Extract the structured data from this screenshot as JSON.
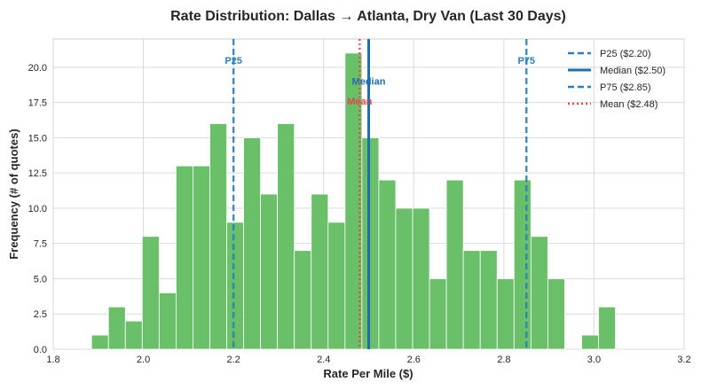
{
  "chart_data": {
    "type": "bar",
    "title": "Rate Distribution: Dallas → Atlanta, Dry Van (Last 30 Days)",
    "xlabel": "Rate Per Mile ($)",
    "ylabel": "Frequency (# of quotes)",
    "xlim": [
      1.8,
      3.2
    ],
    "ylim": [
      0,
      22
    ],
    "xticks": [
      "1.8",
      "2.0",
      "2.2",
      "2.4",
      "2.6",
      "2.8",
      "3.0",
      "3.2"
    ],
    "yticks": [
      "0.0",
      "2.5",
      "5.0",
      "7.5",
      "10.0",
      "12.5",
      "15.0",
      "17.5",
      "20.0"
    ],
    "grid": true,
    "legend_position": "top-right",
    "bin_width": 0.0375,
    "bins": [
      {
        "x0": 1.885,
        "count": 1
      },
      {
        "x0": 1.9225,
        "count": 3
      },
      {
        "x0": 1.96,
        "count": 2
      },
      {
        "x0": 1.9975,
        "count": 8
      },
      {
        "x0": 2.035,
        "count": 4
      },
      {
        "x0": 2.0725,
        "count": 13
      },
      {
        "x0": 2.11,
        "count": 13
      },
      {
        "x0": 2.1475,
        "count": 16
      },
      {
        "x0": 2.185,
        "count": 9
      },
      {
        "x0": 2.2225,
        "count": 15
      },
      {
        "x0": 2.26,
        "count": 11
      },
      {
        "x0": 2.2975,
        "count": 16
      },
      {
        "x0": 2.335,
        "count": 7
      },
      {
        "x0": 2.3725,
        "count": 11
      },
      {
        "x0": 2.41,
        "count": 9
      },
      {
        "x0": 2.4475,
        "count": 21
      },
      {
        "x0": 2.485,
        "count": 15
      },
      {
        "x0": 2.5225,
        "count": 12
      },
      {
        "x0": 2.56,
        "count": 10
      },
      {
        "x0": 2.5975,
        "count": 10
      },
      {
        "x0": 2.635,
        "count": 5
      },
      {
        "x0": 2.6725,
        "count": 12
      },
      {
        "x0": 2.71,
        "count": 7
      },
      {
        "x0": 2.7475,
        "count": 7
      },
      {
        "x0": 2.785,
        "count": 5
      },
      {
        "x0": 2.8225,
        "count": 12
      },
      {
        "x0": 2.86,
        "count": 8
      },
      {
        "x0": 2.8975,
        "count": 5
      },
      {
        "x0": 2.935,
        "count": 0
      },
      {
        "x0": 2.9725,
        "count": 1
      },
      {
        "x0": 3.01,
        "count": 3
      }
    ],
    "bar_color": "#6abf69",
    "reference_lines": [
      {
        "name": "P25",
        "legend": "P25 ($2.20)",
        "value": 2.2,
        "style": "dashed",
        "color": "#2b7fba",
        "label_y": 20.5
      },
      {
        "name": "Median",
        "legend": "Median ($2.50)",
        "value": 2.5,
        "style": "solid",
        "color": "#1f6fb0",
        "label_y": 19.0
      },
      {
        "name": "P75",
        "legend": "P75 ($2.85)",
        "value": 2.85,
        "style": "dashed",
        "color": "#2b7fba",
        "label_y": 20.5
      },
      {
        "name": "Mean",
        "legend": "Mean ($2.48)",
        "value": 2.48,
        "style": "dotted",
        "color": "#e04646",
        "label_y": 17.6
      }
    ]
  }
}
